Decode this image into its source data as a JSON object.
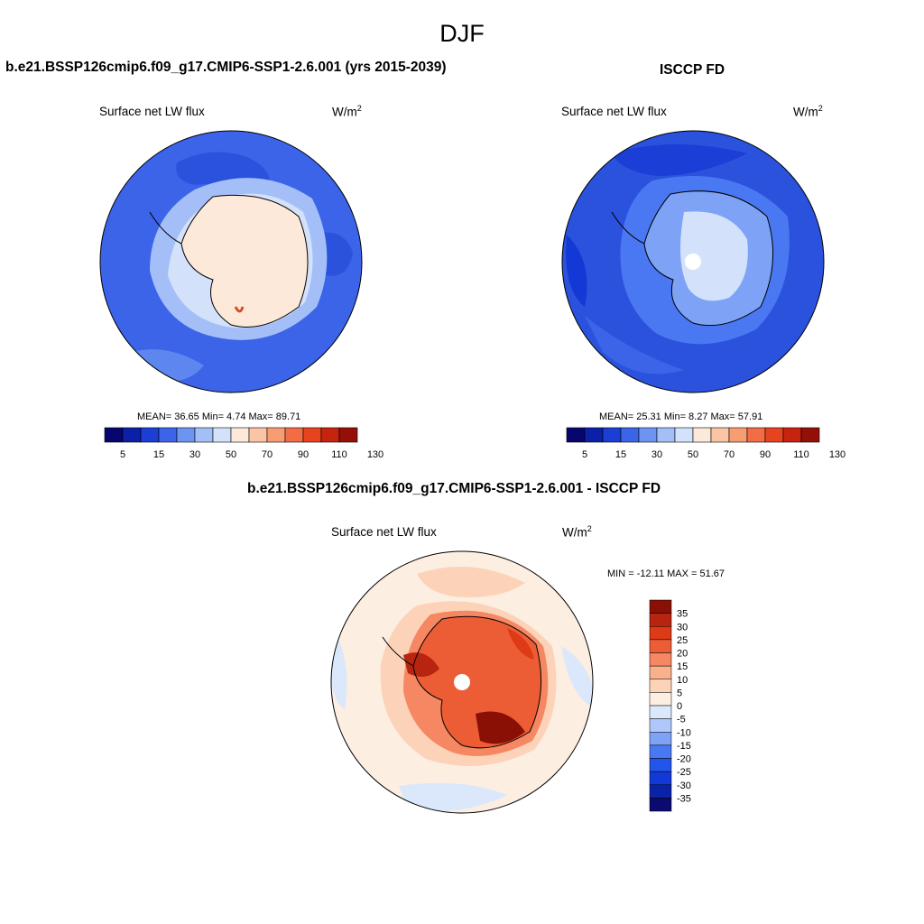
{
  "figure_title": "DJF",
  "colors": {
    "seq_palette": [
      "#06066e",
      "#0b1fa8",
      "#1a3ed6",
      "#3b64e9",
      "#6e94f2",
      "#a4bff7",
      "#d3e2fa",
      "#fde9da",
      "#fbc4a5",
      "#f89c72",
      "#f26d45",
      "#e8431f",
      "#c7240f",
      "#941006"
    ],
    "diff_palette": [
      "#0a0a70",
      "#0a22a8",
      "#1238d6",
      "#2455ea",
      "#4a78f2",
      "#7da2f6",
      "#b0c8f9",
      "#dbe8fb",
      "#fdeee2",
      "#fcd3b8",
      "#f9b08c",
      "#f58762",
      "#ec5d36",
      "#dd3a17",
      "#b72410",
      "#8a1006"
    ]
  },
  "chart_data": [
    {
      "type": "heatmap",
      "projection": "south-polar-stereographic",
      "title": "b.e21.BSSP126cmip6.f09_g17.CMIP6-SSP1-2.6.001 (yrs 2015-2039)",
      "variable": "Surface net LW flux",
      "units_base": "W/m",
      "units_exp": "2",
      "stats": "MEAN=  36.65  Min=   4.74  Max=  89.71",
      "mean": 36.65,
      "min": 4.74,
      "max": 89.71,
      "colorbar_levels": [
        5,
        10,
        15,
        20,
        30,
        40,
        50,
        60,
        70,
        80,
        90,
        100,
        110,
        120,
        130
      ],
      "colorbar_ticks": [
        "5",
        "15",
        "30",
        "50",
        "70",
        "90",
        "110",
        "130"
      ]
    },
    {
      "type": "heatmap",
      "projection": "south-polar-stereographic",
      "title": "ISCCP FD",
      "variable": "Surface net LW flux",
      "units_base": "W/m",
      "units_exp": "2",
      "stats": "MEAN=  25.31  Min=   8.27  Max=  57.91",
      "mean": 25.31,
      "min": 8.27,
      "max": 57.91,
      "colorbar_levels": [
        5,
        10,
        15,
        20,
        30,
        40,
        50,
        60,
        70,
        80,
        90,
        100,
        110,
        120,
        130
      ],
      "colorbar_ticks": [
        "5",
        "15",
        "30",
        "50",
        "70",
        "90",
        "110",
        "130"
      ]
    },
    {
      "type": "heatmap",
      "projection": "south-polar-stereographic",
      "title": "b.e21.BSSP126cmip6.f09_g17.CMIP6-SSP1-2.6.001 - ISCCP FD",
      "variable": "Surface net LW flux",
      "units_base": "W/m",
      "units_exp": "2",
      "stats": "MIN = -12.11 MAX =  51.67",
      "min": -12.11,
      "max": 51.67,
      "colorbar_levels": [
        -35,
        -30,
        -25,
        -20,
        -15,
        -10,
        -5,
        0,
        5,
        10,
        15,
        20,
        25,
        30,
        35
      ],
      "colorbar_ticks": [
        "35",
        "30",
        "25",
        "20",
        "15",
        "10",
        "5",
        "0",
        "-5",
        "-10",
        "-15",
        "-20",
        "-25",
        "-30",
        "-35"
      ]
    }
  ]
}
